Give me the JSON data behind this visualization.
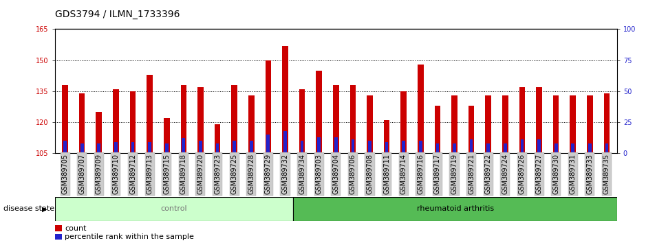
{
  "title": "GDS3794 / ILMN_1733396",
  "categories": [
    "GSM389705",
    "GSM389707",
    "GSM389709",
    "GSM389710",
    "GSM389712",
    "GSM389713",
    "GSM389715",
    "GSM389718",
    "GSM389720",
    "GSM389723",
    "GSM389725",
    "GSM389728",
    "GSM389729",
    "GSM389732",
    "GSM389734",
    "GSM389703",
    "GSM389704",
    "GSM389706",
    "GSM389708",
    "GSM389711",
    "GSM389714",
    "GSM389716",
    "GSM389717",
    "GSM389719",
    "GSM389721",
    "GSM389722",
    "GSM389724",
    "GSM389726",
    "GSM389727",
    "GSM389730",
    "GSM389731",
    "GSM389733",
    "GSM389735"
  ],
  "count_values": [
    138,
    134,
    125,
    136,
    135,
    143,
    122,
    138,
    137,
    119,
    138,
    133,
    150,
    157,
    136,
    145,
    138,
    138,
    133,
    121,
    135,
    148,
    128,
    133,
    128,
    133,
    133,
    137,
    137,
    133,
    133,
    133,
    134
  ],
  "percentile_values": [
    10,
    8,
    8,
    9,
    9,
    9,
    8,
    12,
    10,
    8,
    10,
    10,
    15,
    18,
    10,
    13,
    13,
    11,
    10,
    9,
    10,
    10,
    8,
    8,
    11,
    8,
    8,
    11,
    11,
    8,
    8,
    8,
    8
  ],
  "control_count": 14,
  "rheumatoid_count": 19,
  "y_min": 105,
  "y_max": 165,
  "y_ticks": [
    105,
    120,
    135,
    150,
    165
  ],
  "y2_ticks": [
    0,
    25,
    50,
    75,
    100
  ],
  "bar_color_red": "#cc0000",
  "bar_color_blue": "#2222cc",
  "control_bg": "#ccffcc",
  "rheumatoid_bg": "#55bb55",
  "xtick_bg": "#cccccc",
  "title_fontsize": 10,
  "tick_fontsize": 7,
  "label_fontsize": 8,
  "axis_label_color_red": "#cc0000",
  "axis_label_color_blue": "#2222cc"
}
